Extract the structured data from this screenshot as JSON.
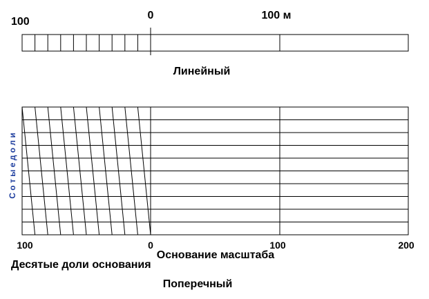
{
  "linear": {
    "labels": [
      "100",
      "0",
      "100 м"
    ],
    "caption": "Линейный"
  },
  "transversal": {
    "side_label": "С о т ы е   д о л и",
    "bottom_labels": [
      "100",
      "0",
      "100",
      "200"
    ],
    "base_label": "Основание масштаба",
    "tenths_label": "Десятые доли основания",
    "caption": "Поперечный"
  }
}
